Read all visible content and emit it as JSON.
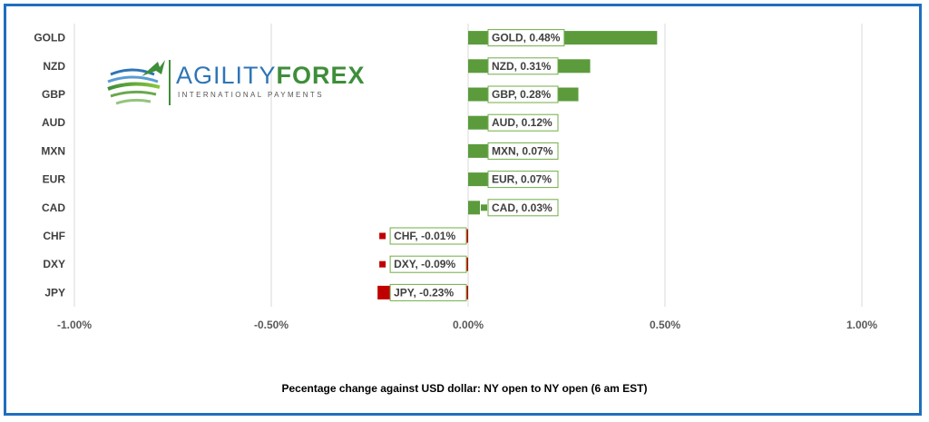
{
  "chart_data": {
    "type": "bar",
    "orientation": "horizontal",
    "categories": [
      "GOLD",
      "NZD",
      "GBP",
      "AUD",
      "MXN",
      "EUR",
      "CAD",
      "CHF",
      "DXY",
      "JPY"
    ],
    "values": [
      0.48,
      0.31,
      0.28,
      0.12,
      0.07,
      0.07,
      0.03,
      -0.01,
      -0.09,
      -0.23
    ],
    "data_labels": [
      "GOLD, 0.48%",
      "NZD, 0.31%",
      "GBP, 0.28%",
      "AUD, 0.12%",
      "MXN, 0.07%",
      "EUR, 0.07%",
      "CAD, 0.03%",
      "CHF, -0.01%",
      "DXY, -0.09%",
      "JPY, -0.23%"
    ],
    "xlim": [
      -1.0,
      1.0
    ],
    "x_ticks": [
      -1.0,
      -0.5,
      0.0,
      0.5,
      1.0
    ],
    "x_tick_labels": [
      "-1.00%",
      "-0.50%",
      "0.00%",
      "0.50%",
      "1.00%"
    ],
    "xlabel": "Pecentage change against USD dollar:  NY open to NY open  (6 am EST)",
    "title": "",
    "grid": "vertical",
    "legend": "none",
    "colors": {
      "positive": "#5b9b3c",
      "negative": "#c00000",
      "label_border": "#70ad47"
    }
  },
  "logo": {
    "brand_a": "AGILITY",
    "brand_b": "FOREX",
    "tagline": "INTERNATIONAL PAYMENTS"
  },
  "frame_color": "#1f6fbf"
}
